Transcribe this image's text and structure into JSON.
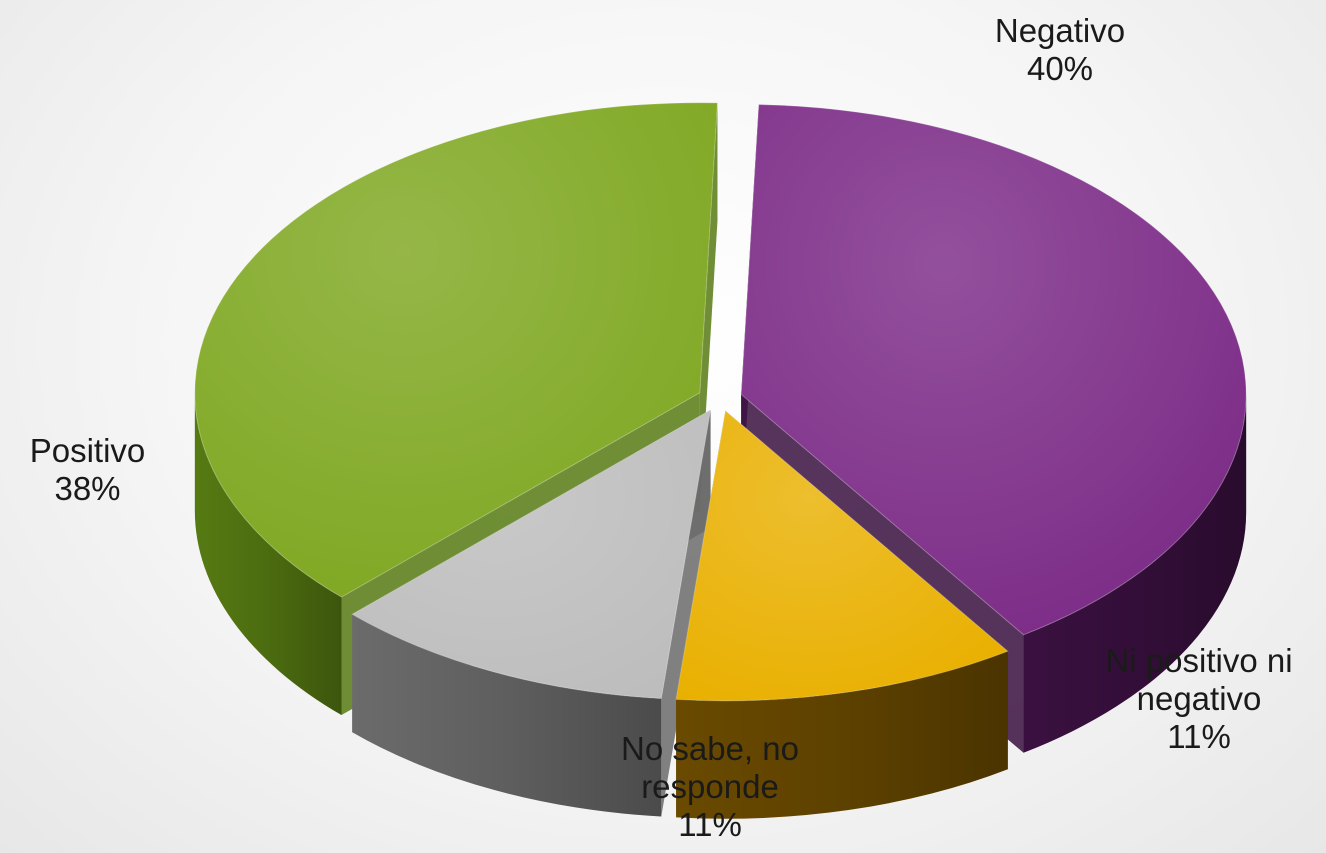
{
  "chart_data": {
    "type": "pie",
    "style": "3d-exploded",
    "slices": [
      {
        "name": "Negativo",
        "value": 40,
        "percent_label": "40%",
        "color": "#7b2a86",
        "side_color": "#3a1040"
      },
      {
        "name": "Ni positivo ni negativo",
        "value": 11,
        "percent_label": "11%",
        "color": "#e9b000",
        "side_color": "#6a4a00"
      },
      {
        "name": "No sabe, no responde",
        "value": 11,
        "percent_label": "11%",
        "color": "#bdbdbd",
        "side_color": "#6b6b6b"
      },
      {
        "name": "Positivo",
        "value": 38,
        "percent_label": "38%",
        "color": "#7ea720",
        "side_color": "#567a12"
      }
    ],
    "labels": [
      {
        "lines": [
          "Negativo",
          "40%"
        ]
      },
      {
        "lines": [
          "Ni positivo ni",
          "negativo",
          "11%"
        ]
      },
      {
        "lines": [
          "No sabe, no",
          "responde",
          "11%"
        ]
      },
      {
        "lines": [
          "Positivo",
          "38%"
        ]
      }
    ],
    "title": "",
    "legend": "none"
  }
}
